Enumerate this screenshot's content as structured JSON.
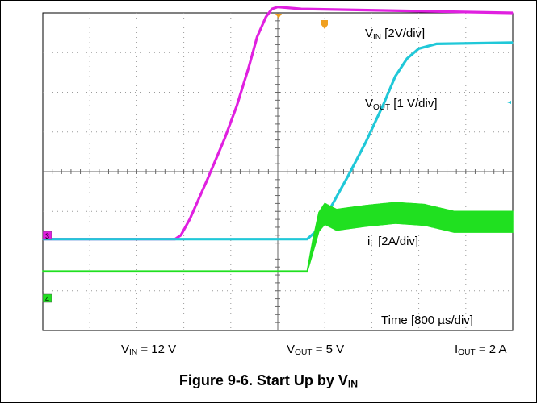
{
  "chart_data": {
    "type": "line",
    "x_unit": "µs",
    "xlim": [
      0,
      8000
    ],
    "grid_divisions_x": 10,
    "grid_divisions_y": 8,
    "grid": true,
    "channel_markers": [
      "3",
      "4"
    ],
    "series": [
      {
        "name": "VIN",
        "label_main": "V",
        "label_sub": "IN",
        "label_rest": " [2V/div]",
        "color": "#e020e0",
        "ylim": [
          -4.6,
          11.4
        ],
        "x": [
          0,
          2250,
          2350,
          2500,
          2800,
          3100,
          3300,
          3500,
          3650,
          3800,
          3900,
          4000,
          4400,
          8000
        ],
        "y": [
          0,
          0,
          0.2,
          1.0,
          3.0,
          5.1,
          6.7,
          8.6,
          10.2,
          11.2,
          11.6,
          11.7,
          11.6,
          11.4
        ]
      },
      {
        "name": "VOUT",
        "label_main": "V",
        "label_sub": "OUT",
        "label_rest": " [1 V/div]",
        "color": "#20c8d8",
        "ylim": [
          -2.3,
          5.7
        ],
        "x": [
          0,
          4500,
          4650,
          4900,
          5200,
          5500,
          5800,
          6000,
          6200,
          6400,
          6700,
          8000
        ],
        "y": [
          0,
          0,
          0.2,
          0.8,
          1.6,
          2.45,
          3.4,
          4.1,
          4.55,
          4.8,
          4.92,
          4.95
        ]
      },
      {
        "name": "iL",
        "label_main": "i",
        "label_sub": "L",
        "label_rest": " [2A/div]",
        "color": "#20e020",
        "ylim": [
          -3.0,
          13.0
        ],
        "x": [
          0,
          4500,
          4600,
          4700,
          4800,
          5000,
          5500,
          6000,
          6500,
          7000,
          7500,
          8000
        ],
        "y": [
          0,
          0,
          1.3,
          2.5,
          2.9,
          2.6,
          2.8,
          2.95,
          2.85,
          2.5,
          2.5,
          2.5
        ],
        "ripple_amplitude": [
          0,
          0,
          0.6,
          0.9,
          1.0,
          1.0,
          1.0,
          1.0,
          1.0,
          1.0,
          1.0,
          1.0
        ]
      }
    ],
    "time_label": "Time [800 µs/div]"
  },
  "conditions": [
    {
      "main": "V",
      "sub": "IN",
      "rest": " = 12 V"
    },
    {
      "main": "V",
      "sub": "OUT",
      "rest": " = 5 V"
    },
    {
      "main": "I",
      "sub": "OUT",
      "rest": " = 2 A"
    }
  ],
  "caption": {
    "main": "Figure 9-6. Start Up by V",
    "sub": "IN"
  }
}
